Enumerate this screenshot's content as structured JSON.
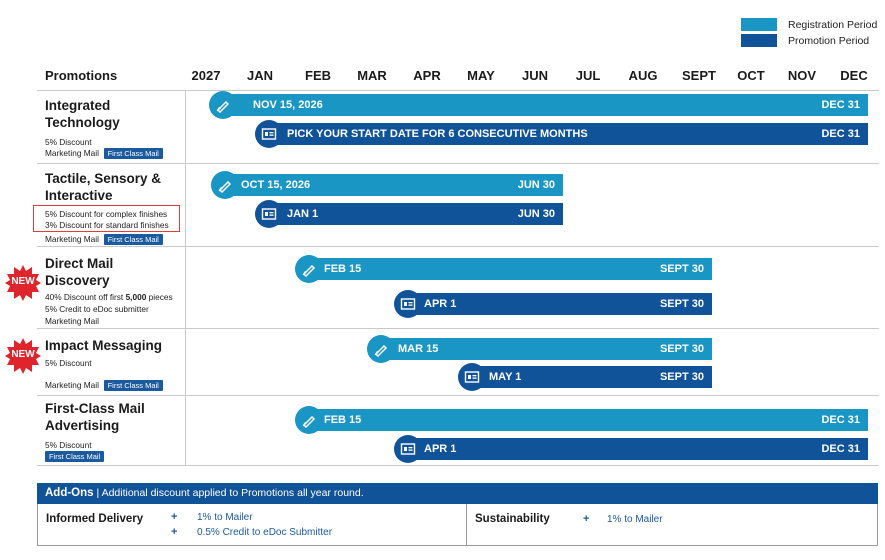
{
  "legend": {
    "registration": {
      "label": "Registration Period",
      "color": "#1a96c4"
    },
    "promotion": {
      "label": "Promotion Period",
      "color": "#115399"
    }
  },
  "header": {
    "promotions_label": "Promotions",
    "year": "2027",
    "months": [
      "JAN",
      "FEB",
      "MAR",
      "APR",
      "MAY",
      "JUN",
      "JUL",
      "AUG",
      "SEPT",
      "OCT",
      "NOV",
      "DEC"
    ]
  },
  "promotions": [
    {
      "name": "Integrated Technology",
      "details": [
        "5% Discount",
        "Marketing Mail"
      ],
      "tag": "First Class Mail",
      "registration": {
        "start": "NOV 15, 2026",
        "end": "DEC 31"
      },
      "promotion": {
        "start": "PICK YOUR START DATE FOR 6 CONSECUTIVE MONTHS",
        "end": "DEC 31"
      }
    },
    {
      "name": "Tactile, Sensory & Interactive",
      "details": [
        "5% Discount for complex finishes",
        "3% Discount for standard finishes",
        "Marketing Mail"
      ],
      "tag": "First Class Mail",
      "registration": {
        "start": "OCT 15, 2026",
        "end": "JUN 30"
      },
      "promotion": {
        "start": "JAN 1",
        "end": "JUN 30"
      }
    },
    {
      "name": "Direct Mail Discovery",
      "badge": "NEW",
      "details": [
        "40% Discount off first",
        "5,000",
        "pieces",
        "5% Credit to eDoc submitter",
        "Marketing Mail"
      ],
      "registration": {
        "start": "FEB 15",
        "end": "SEPT 30"
      },
      "promotion": {
        "start": "APR 1",
        "end": "SEPT 30"
      }
    },
    {
      "name": "Impact Messaging",
      "badge": "NEW",
      "details": [
        "5% Discount",
        "Marketing Mail"
      ],
      "tag": "First Class Mail",
      "registration": {
        "start": "MAR 15",
        "end": "SEPT 30"
      },
      "promotion": {
        "start": "MAY 1",
        "end": "SEPT 30"
      }
    },
    {
      "name": "First-Class Mail Advertising",
      "details": [
        "5% Discount"
      ],
      "tag": "First Class Mail",
      "registration": {
        "start": "FEB 15",
        "end": "DEC 31"
      },
      "promotion": {
        "start": "APR 1",
        "end": "DEC 31"
      }
    }
  ],
  "addons": {
    "title": "Add-Ons",
    "separator": "|",
    "description": "Additional discount applied to Promotions all year round.",
    "informed_delivery": {
      "label": "Informed Delivery",
      "items": [
        "1% to Mailer",
        "0.5% Credit to eDoc Submitter"
      ]
    },
    "sustainability": {
      "label": "Sustainability",
      "items": [
        "1% to Mailer"
      ]
    }
  }
}
